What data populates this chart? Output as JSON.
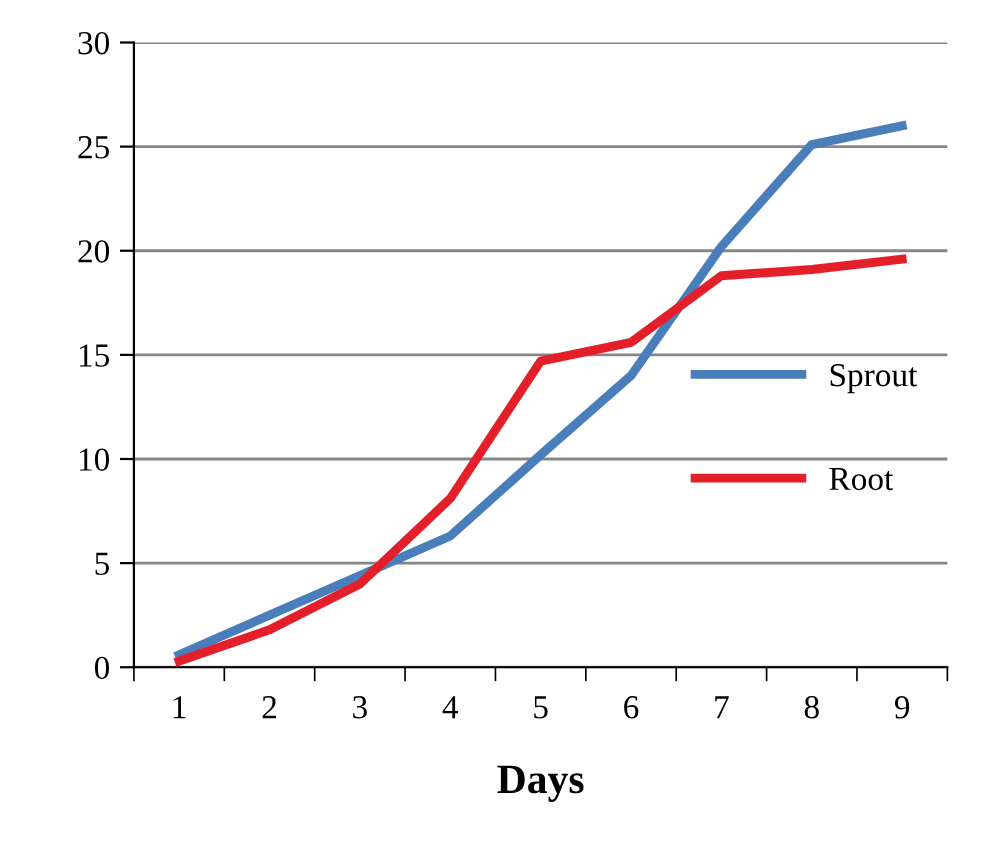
{
  "chart_data": {
    "type": "line",
    "xlabel": "Days",
    "categories": [
      "1",
      "2",
      "3",
      "4",
      "5",
      "6",
      "7",
      "8",
      "9"
    ],
    "series": [
      {
        "name": "Sprout",
        "color": "#4a7ebb",
        "values": [
          0.6,
          2.5,
          4.4,
          6.3,
          10.2,
          14,
          20.2,
          25.1,
          26
        ]
      },
      {
        "name": "Root",
        "color": "#e3202a",
        "values": [
          0.3,
          1.8,
          4.0,
          8.1,
          14.7,
          15.6,
          18.8,
          19.1,
          19.6
        ]
      }
    ],
    "ylim": [
      0,
      30
    ],
    "yticks": [
      0,
      5,
      10,
      15,
      20,
      25,
      30
    ],
    "grid": "y",
    "legend": "right",
    "marker": "none",
    "line_style": "solid"
  }
}
